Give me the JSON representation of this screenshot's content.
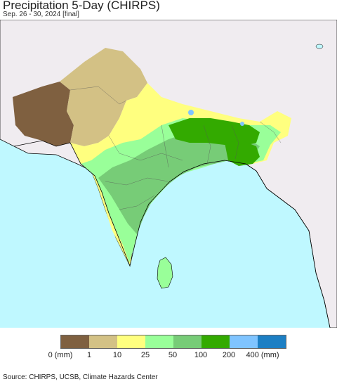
{
  "header": {
    "title": "Precipitation 5-Day (CHIRPS)",
    "subtitle": "Sep. 26 - 30, 2024 [final]"
  },
  "map": {
    "ocean_color": "#bff8ff",
    "land_color": "#f0ecf0",
    "border_color": "#000000"
  },
  "legend": {
    "colors": [
      "#7f6040",
      "#d3c185",
      "#ffff7f",
      "#99ff99",
      "#77cc77",
      "#33aa00",
      "#7fc4ff",
      "#1c7fc4"
    ],
    "labels": [
      "0 (mm)",
      "1",
      "10",
      "25",
      "50",
      "100",
      "200",
      "400 (mm)"
    ]
  },
  "footer": {
    "source": "Source: CHIRPS, UCSB, Climate Hazards Center"
  }
}
